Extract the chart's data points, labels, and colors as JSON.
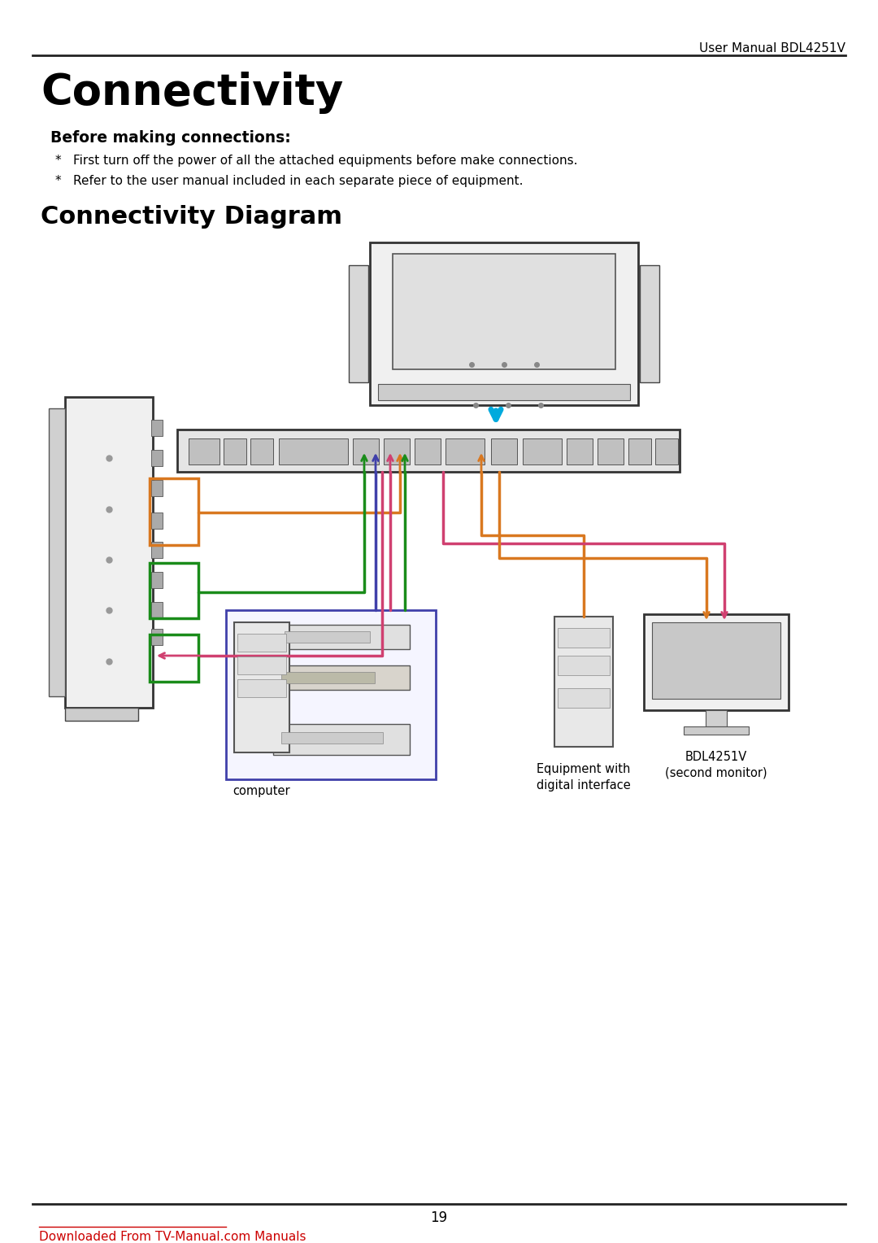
{
  "page_bg": "#ffffff",
  "header_text": "User Manual BDL4251V",
  "title_main": "Connectivity",
  "section_title": "Before making connections:",
  "bullets": [
    "First turn off the power of all the attached equipments before make connections.",
    "Refer to the user manual included in each separate piece of equipment."
  ],
  "diagram_title": "Connectivity Diagram",
  "footer_page": "19",
  "footer_link": "Downloaded From TV-Manual.com Manuals",
  "footer_link_color": "#cc0000",
  "text_color": "#000000",
  "line_color": "#222222",
  "conn_colors": {
    "blue_arrow": "#00aadd",
    "orange": "#d97820",
    "dark_green": "#1a8c1a",
    "pink": "#d04070",
    "purple": "#4040aa"
  }
}
